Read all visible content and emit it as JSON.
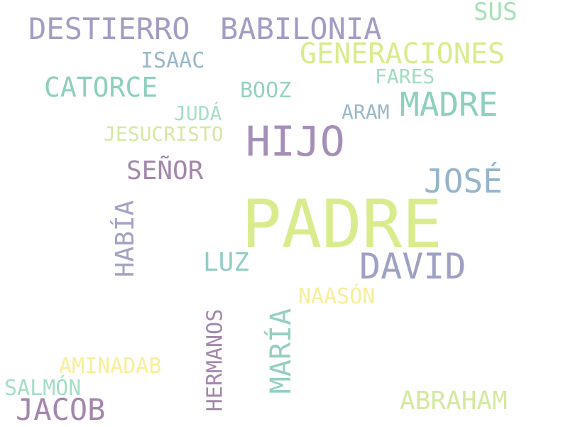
{
  "words": {
    "padre": {
      "text": "PADRE",
      "color": "#d9ec8d"
    },
    "hijo": {
      "text": "HIJO",
      "color": "#a58fb8"
    },
    "destierro": {
      "text": "DESTIERRO",
      "color": "#a49cc4"
    },
    "babilonia": {
      "text": "BABILONIA",
      "color": "#a49cc4"
    },
    "generaciones": {
      "text": "GENERACIONES",
      "color": "#d9ec8d"
    },
    "sus": {
      "text": "SUS",
      "color": "#a6e2b7"
    },
    "isaac": {
      "text": "ISAAC",
      "color": "#9ab7c8"
    },
    "fares": {
      "text": "FARES",
      "color": "#a1dcc2"
    },
    "catorce": {
      "text": "CATORCE",
      "color": "#8ecfc0"
    },
    "booz": {
      "text": "BOOZ",
      "color": "#95d1c1"
    },
    "madre": {
      "text": "MADRE",
      "color": "#8ecfc0"
    },
    "juda": {
      "text": "JUDÁ",
      "color": "#a6ddc7"
    },
    "aram": {
      "text": "ARAM",
      "color": "#9ab7c8"
    },
    "jesucristo": {
      "text": "JESUCRISTO",
      "color": "#d4e9a0"
    },
    "senor": {
      "text": "SEÑOR",
      "color": "#a387ac"
    },
    "jose": {
      "text": "JOSÉ",
      "color": "#97b4c8"
    },
    "habia": {
      "text": "HABÍA",
      "color": "#a4a2c6"
    },
    "luz": {
      "text": "LUZ",
      "color": "#93cdc4"
    },
    "david": {
      "text": "DAVID",
      "color": "#9ea0c4"
    },
    "naason": {
      "text": "NAASÓN",
      "color": "#f7ef98"
    },
    "hermanos": {
      "text": "HERMANOS",
      "color": "#a387ac"
    },
    "maria": {
      "text": "MARÍA",
      "color": "#95cfc2"
    },
    "aminadab": {
      "text": "AMINADAB",
      "color": "#f7ef98"
    },
    "salmon": {
      "text": "SALMÓN",
      "color": "#a6ddc7"
    },
    "jacob": {
      "text": "JACOB",
      "color": "#a387ac"
    },
    "abraham": {
      "text": "ABRAHAM",
      "color": "#d4e9a0"
    }
  }
}
